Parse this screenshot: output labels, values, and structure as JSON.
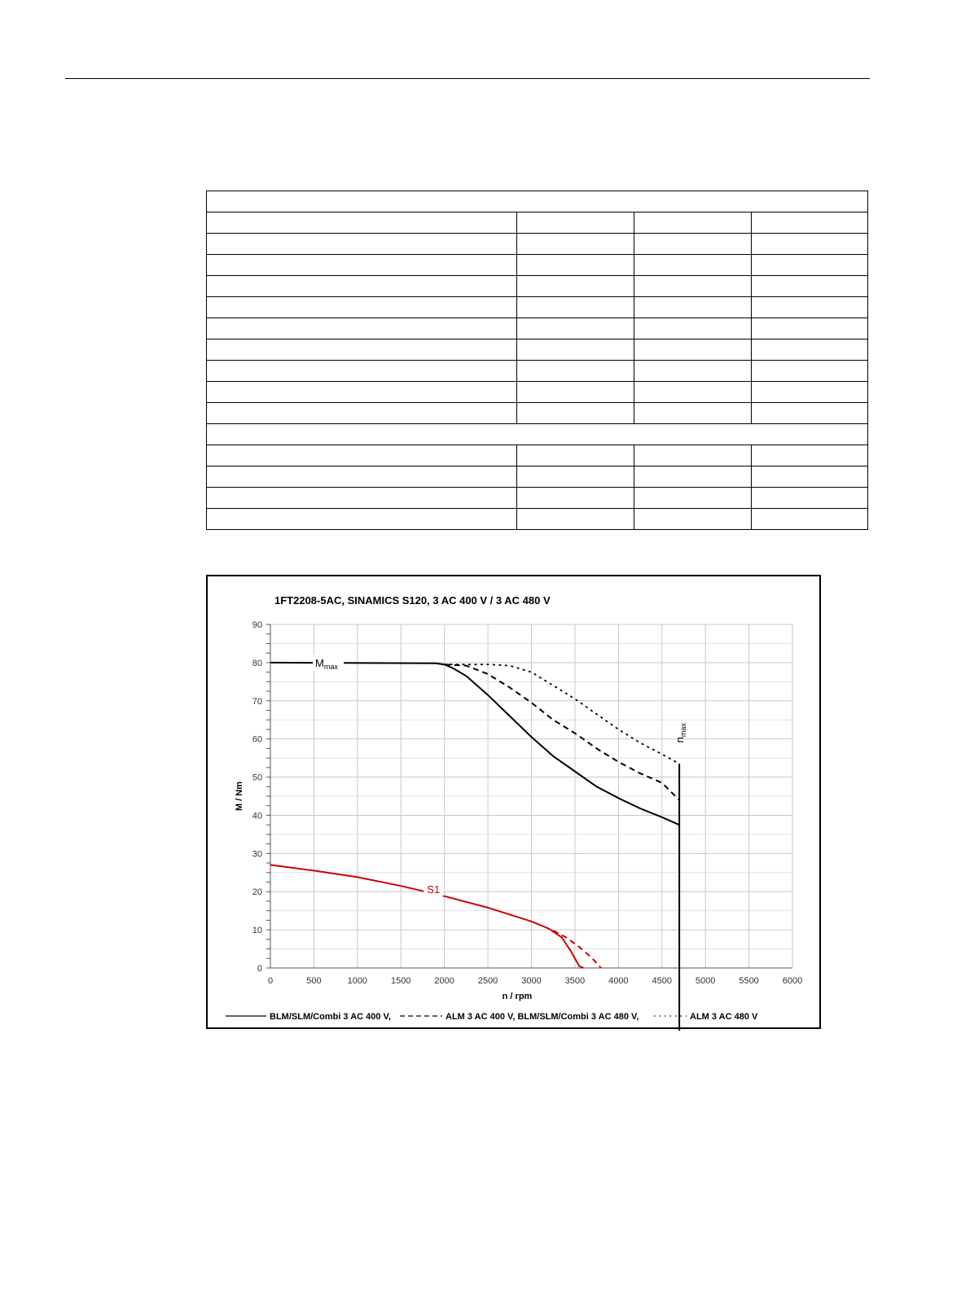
{
  "table": {
    "rows": [
      {
        "kind": "span"
      },
      {
        "kind": "cells"
      },
      {
        "kind": "cells"
      },
      {
        "kind": "cells"
      },
      {
        "kind": "cells"
      },
      {
        "kind": "cells"
      },
      {
        "kind": "cells"
      },
      {
        "kind": "cells"
      },
      {
        "kind": "cells"
      },
      {
        "kind": "cells"
      },
      {
        "kind": "cells"
      },
      {
        "kind": "span"
      },
      {
        "kind": "cells"
      },
      {
        "kind": "cells"
      },
      {
        "kind": "cells"
      },
      {
        "kind": "cells"
      }
    ]
  },
  "chart_data": {
    "type": "line",
    "title": "1FT2208-5AC,  SINAMICS S120,  3 AC 400 V / 3 AC 480 V",
    "xlabel": "n / rpm",
    "ylabel": "M / Nm",
    "xlim": [
      0,
      6000
    ],
    "ylim": [
      0,
      90
    ],
    "x_ticks": [
      "0",
      "500",
      "1000",
      "1500",
      "2000",
      "2500",
      "3000",
      "3500",
      "4000",
      "4500",
      "5000",
      "5500",
      "6000"
    ],
    "y_ticks": [
      "0",
      "10",
      "20",
      "30",
      "40",
      "50",
      "60",
      "70",
      "80",
      "90"
    ],
    "grid": true,
    "legend_position": "bottom",
    "annotations": {
      "mmax_main": "M",
      "mmax_sub": "max",
      "nmax_main": "n",
      "nmax_sub": "max",
      "s1": "S1"
    },
    "nmax_rpm": 4700,
    "colors": {
      "mmax": "#000000",
      "s1": "#cc0000",
      "grid": "#c8c8c8"
    },
    "series": [
      {
        "name": "BLM/SLM/Combi 3 AC 400 V,",
        "group": "mmax",
        "style": "solid",
        "x": [
          0,
          1900,
          2000,
          2100,
          2250,
          2500,
          2750,
          3000,
          3250,
          3500,
          3750,
          4000,
          4250,
          4500,
          4700
        ],
        "y": [
          80,
          79.8,
          79.5,
          78.5,
          76.5,
          71.5,
          66,
          60.5,
          55.5,
          51.5,
          47.5,
          44.5,
          41.8,
          39.5,
          37.5
        ]
      },
      {
        "name": "ALM 3 AC 400 V, BLM/SLM/Combi 3 AC 480 V,",
        "group": "mmax",
        "style": "dashed",
        "x": [
          2000,
          2250,
          2500,
          2750,
          3000,
          3250,
          3500,
          3750,
          4000,
          4250,
          4500,
          4700
        ],
        "y": [
          79.5,
          79.2,
          77,
          73.5,
          69.5,
          65,
          61.5,
          57.5,
          54,
          51,
          48.5,
          44
        ]
      },
      {
        "name": "ALM 3 AC 480 V",
        "group": "mmax",
        "style": "dotted",
        "x": [
          2000,
          2500,
          2750,
          3000,
          3250,
          3500,
          3750,
          4000,
          4250,
          4500,
          4700
        ],
        "y": [
          79.5,
          79.5,
          79.2,
          77.5,
          74,
          70.5,
          66.5,
          62.5,
          59,
          56,
          53.5
        ]
      },
      {
        "name": "",
        "group": "s1",
        "style": "solid",
        "x": [
          0,
          500,
          1000,
          1500,
          2000,
          2500,
          3000,
          3200,
          3350,
          3450,
          3550,
          3600
        ],
        "y": [
          27,
          25.5,
          23.8,
          21.5,
          18.8,
          15.8,
          12.2,
          10.3,
          8,
          4.5,
          0.5,
          0
        ]
      },
      {
        "name": "",
        "group": "s1",
        "style": "dashed",
        "x": [
          3250,
          3400,
          3550,
          3700,
          3800
        ],
        "y": [
          9.8,
          8,
          5.5,
          2.5,
          0
        ]
      }
    ]
  }
}
